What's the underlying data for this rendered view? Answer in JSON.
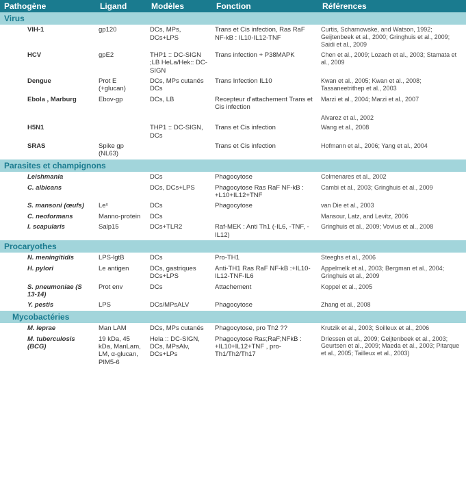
{
  "headers": {
    "c1": "Pathogène",
    "c2": "Ligand",
    "c3": "Modèles",
    "c4": "Fonction",
    "c5": "Références"
  },
  "sections": {
    "virus": "Virus",
    "parasites": "Parasites et champignons",
    "procaryotes": "Procaryothes",
    "myco": "Mycobactéries"
  },
  "rows": {
    "vih": {
      "name": "VIH-1",
      "ligand": "gp120",
      "model": "DCs, MPs, DCs+LPS",
      "func": "Trans et Cis infection, Ras RaF NF-kB : IL10-IL12-TNF",
      "ref": "Curtis, Scharnowske, and Watson, 1992; Geijtenbeek et al., 2000; Gringhuis et al., 2009; Saidi et al., 2009"
    },
    "hcv": {
      "name": "HCV",
      "ligand": "gpE2",
      "model": "THP1 :: DC-SIGN ;LB HeLa/Hek:: DC-SIGN",
      "func": "Trans infection + P38MAPK",
      "ref": "Chen et al., 2009; Lozach et al., 2003; Stamata et al., 2009"
    },
    "dengue": {
      "name": "Dengue",
      "ligand": "Prot E (+glucan)",
      "model": "DCs, MPs cutanés DCs",
      "func": "Trans Infection IL10",
      "ref": "Kwan et al., 2005; Kwan et al., 2008; Tassaneetrithep et al., 2003"
    },
    "ebola": {
      "name": "Ebola , Marburg",
      "ligand": "Ebov-gp",
      "model": "DCs, LB",
      "func": "Recepteur d'attachement Trans et Cis infection",
      "ref": "Marzi et al., 2004; Marzi et al., 2007"
    },
    "ebola2": {
      "ref": "Alvarez et al., 2002"
    },
    "h5n1": {
      "name": "H5N1",
      "ligand": "",
      "model": "THP1 :: DC-SIGN, DCs",
      "func": "Trans et Cis infection",
      "ref": "Wang et al., 2008"
    },
    "sras": {
      "name": "SRAS",
      "ligand": "Spike gp (NL63)",
      "model": "",
      "func": "Trans et Cis infection",
      "ref": "Hofmann et al., 2006; Yang et al., 2004"
    },
    "leish": {
      "name": "Leishmania",
      "ligand": "",
      "model": "DCs",
      "func": "Phagocytose",
      "ref": "Colmenares et al., 2002"
    },
    "calb": {
      "name": "C. albicans",
      "ligand": "",
      "model": "DCs, DCs+LPS",
      "func": "Phagocytose Ras RaF NF-kB : +L10+IL12+TNF",
      "ref": "Cambi et al., 2003; Gringhuis et al., 2009"
    },
    "sman": {
      "name": "S. mansoni (œufs)",
      "ligand": "Leˣ",
      "model": "DCs",
      "func": "Phagocytose",
      "ref": "van Die et al., 2003"
    },
    "cneo": {
      "name": "C. neoformans",
      "ligand": "Manno-protein",
      "model": "DCs",
      "func": "",
      "ref": "Mansour, Latz, and Levitz, 2006"
    },
    "iscap": {
      "name": "I. scapularis",
      "ligand": "Salp15",
      "model": "DCs+TLR2",
      "func": "Raf-MEK : Anti Th1 (-IL6, -TNF, -IL12)",
      "ref": "Gringhuis et al., 2009; Vovius et al., 2008"
    },
    "nmen": {
      "name": "N. meningitidis",
      "ligand": "LPS-lgtB",
      "model": "DCs",
      "func": "Pro-TH1",
      "ref": "Steeghs et al., 2006"
    },
    "hpyl": {
      "name": "H. pylori",
      "ligand": "Le antigen",
      "model": "DCs, gastriques DCs+LPS",
      "func": "Anti-TH1 Ras RaF NF-kB :+IL10-IL12-TNF-IL6",
      "ref": "Appelmelk et al., 2003; Bergman et al., 2004; Gringhuis et al., 2009"
    },
    "spneu": {
      "name": "S. pneumoniae (S 13-14)",
      "ligand": "Prot env",
      "model": "DCs",
      "func": "Attachement",
      "ref": "Koppel et al., 2005"
    },
    "ypest": {
      "name": "Y. pestis",
      "ligand": "LPS",
      "model": "DCs/MPsALV",
      "func": "Phagocytose",
      "ref": "Zhang et al., 2008"
    },
    "mlep": {
      "name": "M. leprae",
      "ligand": "Man LAM",
      "model": "DCs, MPs cutanés",
      "func": "Phagocytose, pro Th2 ??",
      "ref": "Krutzik et al., 2003; Soilleux et al., 2006"
    },
    "mtub": {
      "name": "M. tuberculosis (BCG)",
      "ligand": "19 kDa, 45 kDa, ManLam, LM, α-glucan, PIM5-6",
      "model": "Hela :: DC-SIGN, DCs, MPsAlv, DCs+LPs",
      "func": "Phagocytose Ras;RaF;NFkB : +IL10+IL12+TNF ,  pro-Th1/Th2/Th17",
      "ref": "Driessen et al., 2009; Geijtenbeek et al., 2003; Geurtsen et al., 2009; Maeda et al., 2003; Pitarque et al., 2005; Tailleux et al., 2003)"
    }
  }
}
